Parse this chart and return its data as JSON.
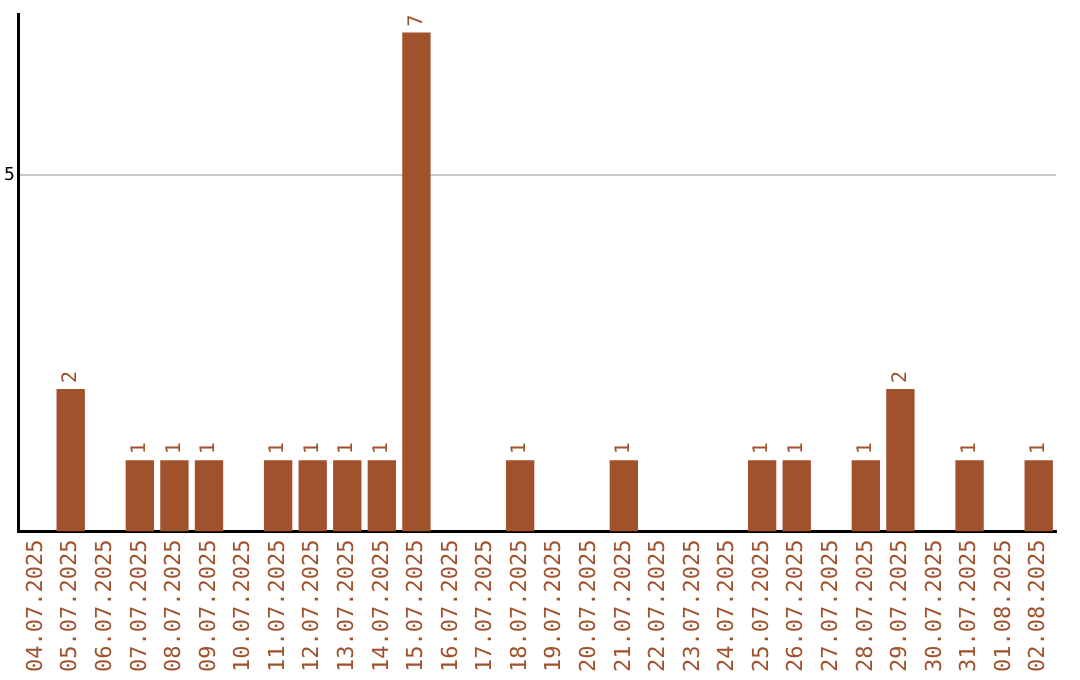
{
  "chart_data": {
    "type": "bar",
    "categories": [
      "04.07.2025",
      "05.07.2025",
      "06.07.2025",
      "07.07.2025",
      "08.07.2025",
      "09.07.2025",
      "10.07.2025",
      "11.07.2025",
      "12.07.2025",
      "13.07.2025",
      "14.07.2025",
      "15.07.2025",
      "16.07.2025",
      "17.07.2025",
      "18.07.2025",
      "19.07.2025",
      "20.07.2025",
      "21.07.2025",
      "22.07.2025",
      "23.07.2025",
      "24.07.2025",
      "25.07.2025",
      "26.07.2025",
      "27.07.2025",
      "28.07.2025",
      "29.07.2025",
      "30.07.2025",
      "31.07.2025",
      "01.08.2025",
      "02.08.2025"
    ],
    "values": [
      0,
      2,
      0,
      1,
      1,
      1,
      0,
      1,
      1,
      1,
      1,
      7,
      0,
      0,
      1,
      0,
      0,
      1,
      0,
      0,
      0,
      1,
      1,
      0,
      1,
      2,
      0,
      1,
      0,
      1
    ],
    "value_labels": [
      null,
      "2",
      null,
      "1",
      "1",
      "1",
      null,
      "1",
      "1",
      "1",
      "1",
      "7",
      null,
      null,
      "1",
      null,
      null,
      "1",
      null,
      null,
      null,
      "1",
      "1",
      null,
      "1",
      "2",
      null,
      "1",
      null,
      "1"
    ],
    "color": "#a0522d",
    "ylim": [
      0,
      7.25
    ],
    "yticks": [
      5
    ],
    "grid": "y",
    "legend": false
  }
}
